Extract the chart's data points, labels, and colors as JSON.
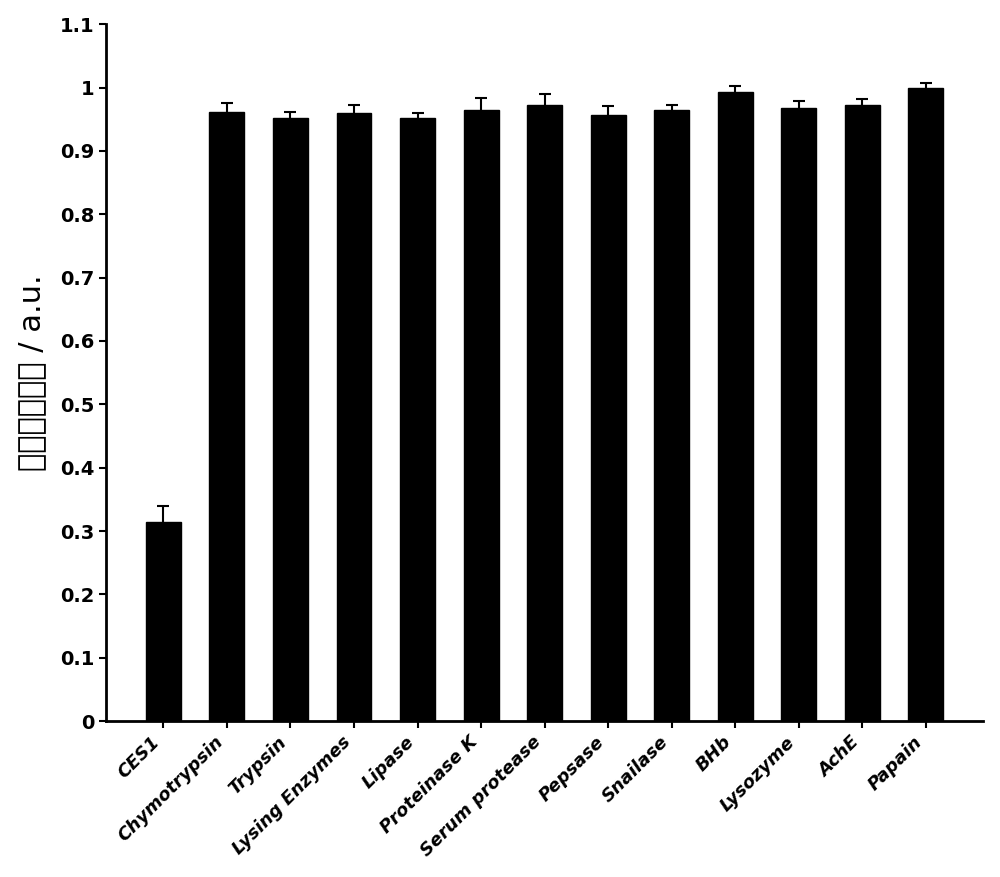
{
  "categories": [
    "CES1",
    "Chymotrypsin",
    "Trypsin",
    "Lysing Enzymes",
    "Lipase",
    "Proteinase K",
    "Serum protease",
    "Pepsase",
    "Snailase",
    "BHb",
    "Lysozyme",
    "AchE",
    "Papain"
  ],
  "values": [
    0.314,
    0.962,
    0.952,
    0.96,
    0.952,
    0.965,
    0.972,
    0.957,
    0.964,
    0.993,
    0.968,
    0.972,
    0.999
  ],
  "errors": [
    0.025,
    0.013,
    0.01,
    0.013,
    0.008,
    0.018,
    0.018,
    0.014,
    0.008,
    0.009,
    0.01,
    0.01,
    0.008
  ],
  "bar_color": "#000000",
  "error_color": "#000000",
  "ylabel": "相对荧光强度 / a.u.",
  "ylim": [
    0,
    1.1
  ],
  "yticks": [
    0,
    0.1,
    0.2,
    0.3,
    0.4,
    0.5,
    0.6,
    0.7,
    0.8,
    0.9,
    1.0,
    1.1
  ],
  "ytick_labels": [
    "0",
    "0.1",
    "0.2",
    "0.3",
    "0.4",
    "0.5",
    "0.6",
    "0.7",
    "0.8",
    "0.9",
    "1",
    "1.1"
  ],
  "background_color": "#ffffff",
  "bar_width": 0.55,
  "tick_fontsize": 14,
  "ylabel_fontsize": 22,
  "xtick_fontsize": 13
}
